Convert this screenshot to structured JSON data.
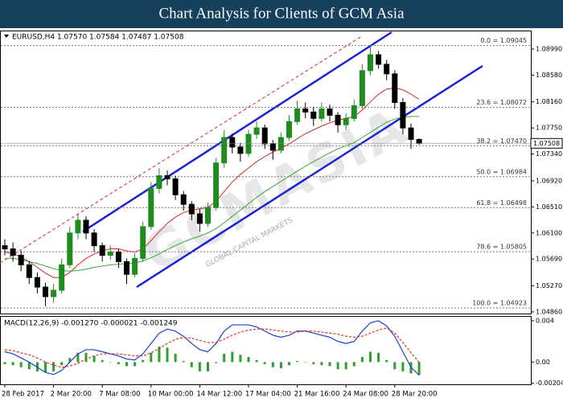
{
  "header": {
    "title": "Chart Analysis for Clients of GCM Asia",
    "watermark": "GCMASIA",
    "watermark_sub": "GLOBAL CAPITAL MARKETS"
  },
  "chart_data": [
    {
      "type": "candlestick",
      "title": "EURUSD,H4 1.07570 1.07584 1.07487 1.07508",
      "categories": [
        "28 Feb 2017",
        null,
        null,
        null,
        null,
        null,
        "2 Mar 20:00",
        null,
        null,
        null,
        null,
        null,
        "7 Mar 08:00",
        null,
        null,
        null,
        null,
        null,
        "10 Mar 00:00",
        null,
        null,
        null,
        null,
        null,
        "14 Mar 12:00",
        null,
        null,
        null,
        null,
        null,
        "17 Mar 04:00",
        null,
        null,
        null,
        null,
        null,
        "21 Mar 16:00",
        null,
        null,
        null,
        null,
        null,
        "24 Mar 08:00",
        null,
        null,
        null,
        null,
        null,
        "28 Mar 20:00",
        null,
        null,
        null
      ],
      "open": [
        1.059,
        1.0585,
        1.0575,
        1.056,
        1.054,
        1.0525,
        1.051,
        1.052,
        1.056,
        1.061,
        1.063,
        1.061,
        1.059,
        1.0575,
        1.058,
        1.0565,
        1.0545,
        1.057,
        1.062,
        1.068,
        1.07,
        1.0695,
        1.067,
        1.0655,
        1.064,
        1.0625,
        1.065,
        1.072,
        1.076,
        1.0745,
        1.0735,
        1.0765,
        1.0775,
        1.075,
        1.074,
        1.076,
        1.0785,
        1.0805,
        1.08,
        1.079,
        1.0805,
        1.0795,
        1.078,
        1.079,
        1.081,
        1.0865,
        1.089,
        1.0875,
        1.086,
        1.0815,
        1.0775,
        1.0757
      ],
      "high": [
        1.06,
        1.0595,
        1.0582,
        1.0566,
        1.0548,
        1.0532,
        1.053,
        1.057,
        1.062,
        1.064,
        1.0636,
        1.0616,
        1.0595,
        1.059,
        1.0585,
        1.057,
        1.0578,
        1.0628,
        1.069,
        1.0712,
        1.0708,
        1.07,
        1.0676,
        1.066,
        1.0648,
        1.0658,
        1.0728,
        1.0772,
        1.0766,
        1.0752,
        1.0772,
        1.0785,
        1.078,
        1.0756,
        1.0768,
        1.0795,
        1.0818,
        1.0815,
        1.0808,
        1.0815,
        1.0812,
        1.08,
        1.0798,
        1.082,
        1.0875,
        1.09045,
        1.0896,
        1.0882,
        1.0866,
        1.0822,
        1.0782,
        1.07584
      ],
      "low": [
        1.0575,
        1.0565,
        1.055,
        1.053,
        1.0515,
        1.0495,
        1.05,
        1.0515,
        1.0555,
        1.06,
        1.06,
        1.058,
        1.0565,
        1.0568,
        1.0555,
        1.053,
        1.054,
        1.0565,
        1.0615,
        1.0672,
        1.0685,
        1.0662,
        1.0645,
        1.063,
        1.0612,
        1.062,
        1.0645,
        1.0712,
        1.0735,
        1.0722,
        1.073,
        1.0758,
        1.0742,
        1.0725,
        1.0735,
        1.0755,
        1.078,
        1.079,
        1.0778,
        1.0785,
        1.0785,
        1.0768,
        1.0772,
        1.0785,
        1.0805,
        1.0858,
        1.0868,
        1.085,
        1.0805,
        1.0765,
        1.0742,
        1.07487
      ],
      "close": [
        1.0585,
        1.0575,
        1.056,
        1.054,
        1.0525,
        1.051,
        1.052,
        1.056,
        1.061,
        1.063,
        1.061,
        1.059,
        1.0575,
        1.058,
        1.0565,
        1.0545,
        1.057,
        1.062,
        1.068,
        1.07,
        1.0695,
        1.067,
        1.0655,
        1.064,
        1.0625,
        1.065,
        1.072,
        1.076,
        1.0745,
        1.0735,
        1.0765,
        1.0775,
        1.075,
        1.074,
        1.076,
        1.0785,
        1.0805,
        1.08,
        1.079,
        1.0805,
        1.0795,
        1.078,
        1.079,
        1.081,
        1.0865,
        1.089,
        1.0875,
        1.086,
        1.0815,
        1.0775,
        1.0757,
        1.07508
      ],
      "bull_color": "#1e8c1e",
      "bear_color": "#000000",
      "series": [
        {
          "color": "#d62828",
          "values": [
            1.058,
            1.0578,
            1.0572,
            1.0565,
            1.0556,
            1.0547,
            1.054,
            1.054,
            1.0548,
            1.056,
            1.057,
            1.0577,
            1.0582,
            1.0585,
            1.0585,
            1.0582,
            1.058,
            1.0585,
            1.0598,
            1.0612,
            1.0625,
            1.0635,
            1.0642,
            1.0646,
            1.0648,
            1.065,
            1.066,
            1.0675,
            1.069,
            1.0702,
            1.0712,
            1.0722,
            1.073,
            1.0737,
            1.0743,
            1.075,
            1.0758,
            1.0766,
            1.0772,
            1.0778,
            1.0783,
            1.0787,
            1.079,
            1.0793,
            1.0803,
            1.0816,
            1.0828,
            1.0836,
            1.0838,
            1.0835,
            1.0828,
            1.082
          ]
        },
        {
          "color": "#3aa63a",
          "values": [
            1.057,
            1.057,
            1.0568,
            1.0565,
            1.0562,
            1.0558,
            1.0554,
            1.0551,
            1.055,
            1.0551,
            1.0553,
            1.0556,
            1.0558,
            1.056,
            1.0561,
            1.0562,
            1.0563,
            1.0566,
            1.0571,
            1.0577,
            1.0584,
            1.059,
            1.0596,
            1.0601,
            1.0605,
            1.061,
            1.0617,
            1.0626,
            1.0636,
            1.0646,
            1.0656,
            1.0666,
            1.0675,
            1.0683,
            1.0691,
            1.0699,
            1.0707,
            1.0715,
            1.0722,
            1.0729,
            1.0736,
            1.0742,
            1.0747,
            1.0752,
            1.076,
            1.0768,
            1.0776,
            1.0784,
            1.0789,
            1.0792,
            1.0793,
            1.0793
          ]
        }
      ],
      "fibonacci": [
        {
          "value": 1.09045,
          "label": "0.0 = 1.09045"
        },
        {
          "value": 1.08072,
          "label": "23.6 = 1.08072"
        },
        {
          "value": 1.0747,
          "label": "38.2 = 1.07470"
        },
        {
          "value": 1.06984,
          "label": "50.0 = 1.06984"
        },
        {
          "value": 1.06498,
          "label": "61.8 = 1.06498"
        },
        {
          "value": 1.05805,
          "label": "78.6 = 1.05805"
        },
        {
          "value": 1.04923,
          "label": "100.0 = 1.04923"
        }
      ],
      "ylim": [
        1.04834,
        1.0928
      ],
      "yticks": [
        {
          "value": 1.0899,
          "label": "1.08990"
        },
        {
          "value": 1.0858,
          "label": "1.08580"
        },
        {
          "value": 1.0816,
          "label": "1.08160"
        },
        {
          "value": 1.0775,
          "label": "1.07750"
        },
        {
          "value": 1.0734,
          "label": "1.07340"
        },
        {
          "value": 1.0692,
          "label": "1.06920"
        },
        {
          "value": 1.0651,
          "label": "1.06510"
        },
        {
          "value": 1.061,
          "label": "1.06100"
        },
        {
          "value": 1.0569,
          "label": "1.05690"
        },
        {
          "value": 1.0527,
          "label": "1.05270"
        },
        {
          "value": 1.0486,
          "label": "1.04860"
        }
      ]
    },
    {
      "type": "macd",
      "title": "MACD(12,26,9) -0.001270 -0.000021 -0.001249",
      "series": [
        {
          "style": "histogram",
          "color": "#2ca02c",
          "values": [
            -0.0002,
            -0.0003,
            -0.0005,
            -0.0007,
            -0.0009,
            -0.001,
            -0.0009,
            -0.0003,
            0.0004,
            0.0009,
            0.0009,
            0.0006,
            0.0002,
            0.0,
            -0.0002,
            -0.0004,
            -0.0004,
            0.0002,
            0.0009,
            0.0015,
            0.0014,
            0.0008,
            0.0001,
            -0.0005,
            -0.0009,
            -0.0009,
            -0.0001,
            0.0008,
            0.001,
            0.0007,
            0.0005,
            0.0002,
            -0.0002,
            -0.0005,
            -0.0006,
            -0.0003,
            0.0001,
            0.0,
            -0.0002,
            -0.0003,
            -0.0004,
            -0.0007,
            -0.0007,
            -0.0004,
            0.0005,
            0.001,
            0.0009,
            0.0002,
            -0.0007,
            -0.0009,
            -0.0011,
            -0.001249
          ]
        },
        {
          "style": "line",
          "color": "#1f3fd6",
          "values": [
            0.001,
            0.0008,
            0.0004,
            0.0,
            -0.0005,
            -0.001,
            -0.0012,
            -0.0008,
            0.0,
            0.0008,
            0.0012,
            0.0012,
            0.001,
            0.0008,
            0.0006,
            0.0003,
            0.0002,
            0.0008,
            0.0018,
            0.0028,
            0.0032,
            0.003,
            0.0025,
            0.0018,
            0.0012,
            0.001,
            0.0018,
            0.003,
            0.0036,
            0.0036,
            0.0036,
            0.0034,
            0.003,
            0.0026,
            0.0024,
            0.0026,
            0.003,
            0.003,
            0.0028,
            0.0026,
            0.0024,
            0.002,
            0.0018,
            0.002,
            0.003,
            0.0038,
            0.004,
            0.0035,
            0.0025,
            0.001,
            -0.0005,
            -0.00127
          ]
        },
        {
          "style": "dashed",
          "color": "#e03020",
          "values": [
            0.0012,
            0.0011,
            0.0009,
            0.0007,
            0.0004,
            0.0,
            -0.0003,
            -0.0005,
            -0.0004,
            -0.0001,
            0.0003,
            0.0006,
            0.0008,
            0.0008,
            0.0008,
            0.0007,
            0.0006,
            0.0006,
            0.0009,
            0.0013,
            0.0018,
            0.0022,
            0.0024,
            0.0023,
            0.0021,
            0.0019,
            0.0019,
            0.0022,
            0.0026,
            0.0029,
            0.0031,
            0.0032,
            0.0032,
            0.0031,
            0.003,
            0.0029,
            0.0029,
            0.003,
            0.003,
            0.0029,
            0.0028,
            0.0027,
            0.0025,
            0.0024,
            0.0025,
            0.0028,
            0.0031,
            0.0033,
            0.0028,
            0.0019,
            0.0009,
            -2.1e-05
          ]
        }
      ],
      "ylim": [
        -0.00215,
        0.00446
      ],
      "yticks": [
        0.004,
        {
          "value": 0,
          "label": "0.00"
        },
        -0.002049
      ]
    }
  ]
}
